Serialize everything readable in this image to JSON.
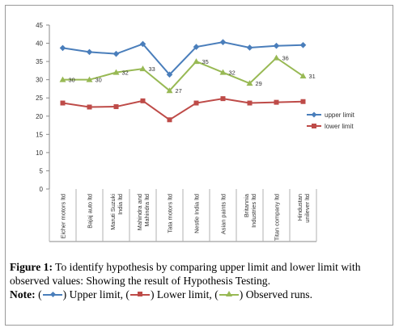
{
  "chart_data": {
    "type": "line",
    "categories": [
      "Eicher motors ltd",
      "Bajaj auto ltd",
      "Maruti Suzuki India ltd",
      "Mahindra and Mahindra ltd",
      "Tata motors ltd",
      "Nestle India ltd",
      "Asian paints ltd",
      "Britannia Industries ltd",
      "Titan company ltd",
      "Hindustan unilever ltd"
    ],
    "y_ticks": [
      "0",
      "5",
      "10",
      "15",
      "20",
      "25",
      "30",
      "35",
      "40",
      "45"
    ],
    "ylim": [
      0,
      45
    ],
    "grid": false,
    "legend_position": "right",
    "series": [
      {
        "name": "upper limit",
        "color": "#4a7ebb",
        "marker": "diamond",
        "values": [
          38.7,
          37.6,
          37.1,
          39.8,
          31.4,
          39.0,
          40.3,
          38.8,
          39.3,
          39.5
        ]
      },
      {
        "name": "lower limit",
        "color": "#be4b48",
        "marker": "square",
        "values": [
          23.6,
          22.5,
          22.6,
          24.2,
          19.0,
          23.6,
          24.8,
          23.6,
          23.8,
          24.0
        ]
      },
      {
        "name": "",
        "color": "#98b954",
        "marker": "triangle",
        "values": [
          30,
          30,
          32,
          33,
          27,
          35,
          32,
          29,
          36,
          31
        ],
        "labels": [
          "30",
          "30",
          "32",
          "33",
          "27",
          "35",
          "32",
          "29",
          "36",
          "31"
        ]
      }
    ]
  },
  "caption": {
    "figure_label": "Figure 1:",
    "text": " To identify hypothesis by comparing upper limit and lower limit with observed values: Showing the result of Hypothesis Testing.",
    "note_label": "Note:",
    "upper_text": ") Upper limit, (",
    "lower_text": ") Lower limit, (",
    "observed_text": ") Observed runs."
  }
}
